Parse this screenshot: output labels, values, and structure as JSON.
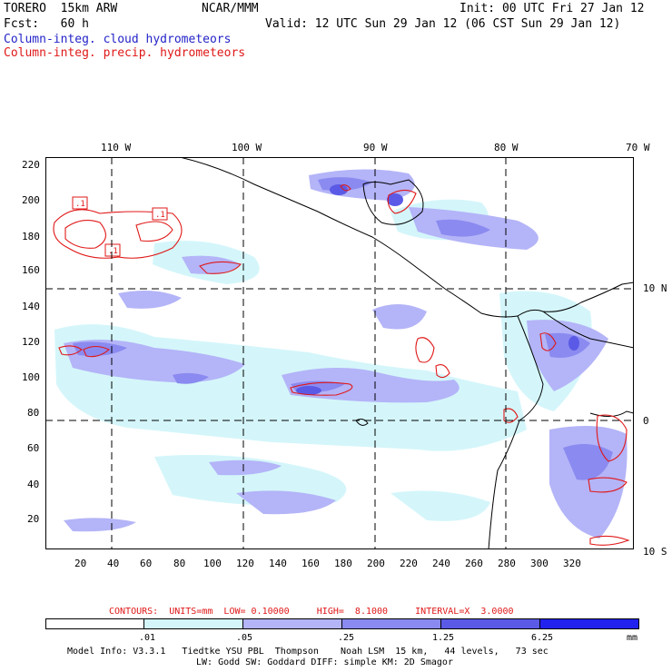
{
  "header": {
    "model": "TORERO  15km ARW",
    "org": "NCAR/MMM",
    "init": "Init: 00 UTC Fri 27 Jan 12",
    "fcst": "Fcst:   60 h",
    "valid": "Valid: 12 UTC Sun 29 Jan 12 (06 CST Sun 29 Jan 12)",
    "field1": "Column-integ. cloud hydrometeors",
    "field2": "Column-integ. precip. hydrometeors"
  },
  "colors": {
    "field1": "#2424c8",
    "field2": "#e01818",
    "contour": "#e01818",
    "coast": "#000000"
  },
  "map": {
    "top_lon_labels": [
      "110 W",
      "100 W",
      "90 W",
      "80 W",
      "70 W"
    ],
    "left_y_labels": [
      "220",
      "200",
      "180",
      "160",
      "140",
      "120",
      "100",
      "80",
      "60",
      "40",
      "20"
    ],
    "bottom_x_labels": [
      "20",
      "40",
      "60",
      "80",
      "100",
      "120",
      "140",
      "160",
      "180",
      "200",
      "220",
      "240",
      "260",
      "280",
      "300",
      "320"
    ],
    "right_lat_labels": [
      "10 N",
      "0",
      "10 S"
    ],
    "contour_labels": [
      ".1",
      ".1",
      ".1"
    ]
  },
  "footer": {
    "contours_line": "CONTOURS:  UNITS=mm  LOW= 0.10000     HIGH=  8.1000     INTERVAL=X  3.0000",
    "colorbar_ticks": [
      ".01",
      ".05",
      ".25",
      "1.25",
      "6.25"
    ],
    "colorbar_colors": [
      "#ffffff",
      "#d4f6fa",
      "#b4b4f8",
      "#8a8af0",
      "#5a5ae6",
      "#2222ee"
    ],
    "colorbar_unit": "mm",
    "info_line1": "Model Info: V3.3.1   Tiedtke YSU PBL  Thompson    Noah LSM  15 km,   44 levels,   73 sec",
    "info_line2": "LW: Godd SW: Goddard DIFF: simple KM: 2D Smagor"
  }
}
